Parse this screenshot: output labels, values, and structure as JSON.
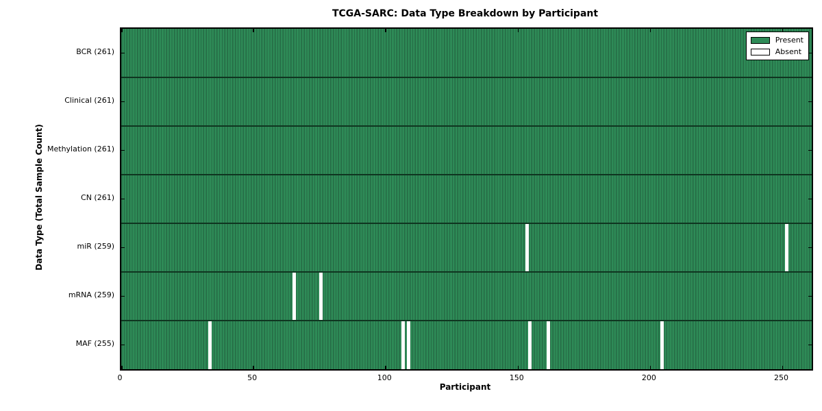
{
  "chart_data": {
    "type": "heatmap",
    "title": "TCGA-SARC: Data Type Breakdown by Participant",
    "xlabel": "Participant",
    "ylabel": "Data Type (Total Sample Count)",
    "x_ticks": [
      0,
      50,
      100,
      150,
      200,
      250
    ],
    "x_range": [
      0,
      261
    ],
    "n_participants": 261,
    "grid": false,
    "legend": {
      "position": "upper right",
      "entries": [
        {
          "label": "Present",
          "color": "#2e8b57"
        },
        {
          "label": "Absent",
          "color": "#ffffff"
        }
      ]
    },
    "rows": [
      {
        "label": "BCR (261)",
        "data_type": "BCR",
        "total": 261,
        "absent_participants": []
      },
      {
        "label": "Clinical (261)",
        "data_type": "Clinical",
        "total": 261,
        "absent_participants": []
      },
      {
        "label": "Methylation (261)",
        "data_type": "Methylation",
        "total": 261,
        "absent_participants": []
      },
      {
        "label": "CN (261)",
        "data_type": "CN",
        "total": 261,
        "absent_participants": []
      },
      {
        "label": "miR (259)",
        "data_type": "miR",
        "total": 259,
        "absent_participants": [
          153,
          251
        ]
      },
      {
        "label": "mRNA (259)",
        "data_type": "mRNA",
        "total": 259,
        "absent_participants": [
          65,
          75
        ]
      },
      {
        "label": "MAF (255)",
        "data_type": "MAF",
        "total": 255,
        "absent_participants": [
          33,
          106,
          108,
          154,
          161,
          204
        ]
      }
    ],
    "colors": {
      "present": "#2e8b57",
      "present_stripe_dark": "#256b45",
      "absent": "#ffffff",
      "row_divider": "#0f3520",
      "axis": "#000000",
      "text": "#000000",
      "background": "#ffffff"
    }
  }
}
